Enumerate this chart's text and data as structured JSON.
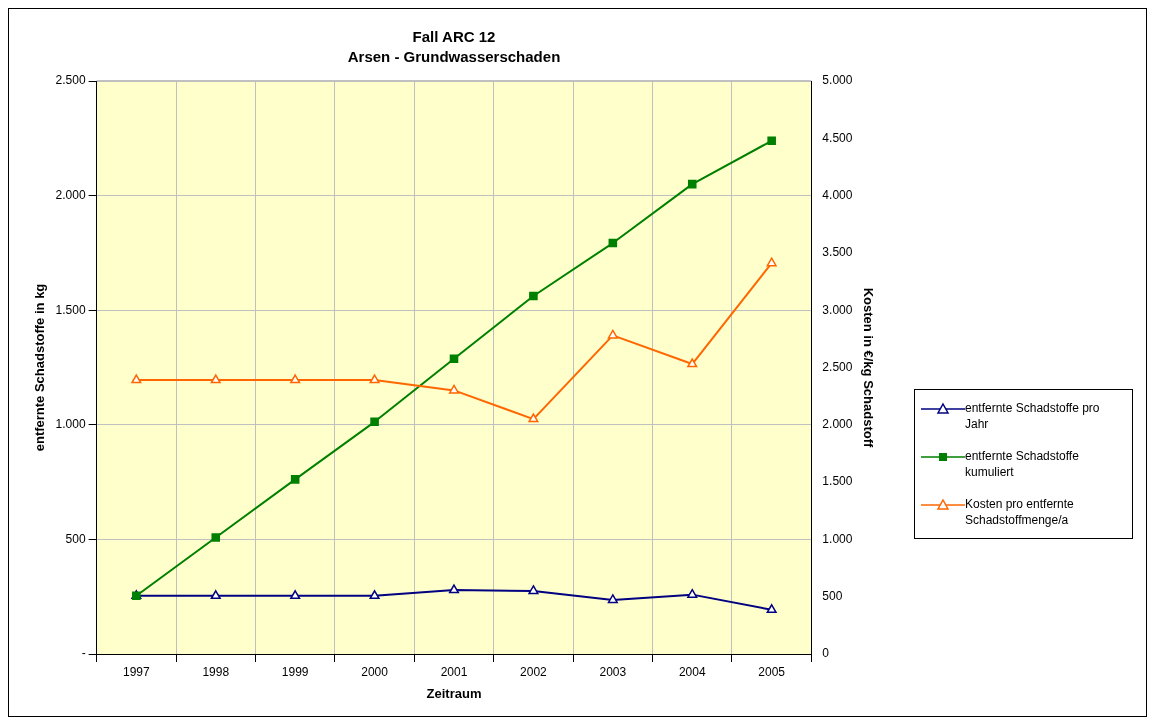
{
  "chart_data": {
    "type": "line",
    "title": "Fall ARC 12",
    "subtitle": "Arsen - Grundwasserschaden",
    "xlabel": "Zeitraum",
    "ylabel": "entfernte Schadstoffe in kg",
    "y2label": "Kosten in €/kg Schadstoff",
    "categories": [
      "1997",
      "1998",
      "1999",
      "2000",
      "2001",
      "2002",
      "2003",
      "2004",
      "2005"
    ],
    "series": [
      {
        "name": "entfernte Schadstoffe pro Jahr",
        "color": "#000080",
        "marker": "triangle",
        "values": [
          254,
          254,
          254,
          254,
          279,
          275,
          236,
          259,
          193
        ]
      },
      {
        "name": "entfernte Schadstoffe kumuliert",
        "color": "#008000",
        "marker": "square",
        "values": [
          254,
          508,
          762,
          1013,
          1288,
          1562,
          1793,
          2050,
          2239
        ]
      },
      {
        "name": "Kosten pro entfernte Schadstoffmenge/a",
        "color": "#ff6600",
        "marker": "triangle",
        "axis": "y2",
        "values": [
          2390,
          2390,
          2390,
          2390,
          2300,
          2050,
          2780,
          2530,
          3410
        ]
      }
    ],
    "ylim": [
      0,
      2500
    ],
    "yticks": [
      {
        "value": 0,
        "label": "-"
      },
      {
        "value": 500,
        "label": "500"
      },
      {
        "value": 1000,
        "label": "1.000"
      },
      {
        "value": 1500,
        "label": "1.500"
      },
      {
        "value": 2000,
        "label": "2.000"
      },
      {
        "value": 2500,
        "label": "2.500"
      }
    ],
    "y2lim": [
      0,
      5000
    ],
    "y2ticks": [
      0,
      {
        "value": 500,
        "label": "500"
      },
      {
        "value": 1000,
        "label": "1.000"
      },
      {
        "value": 1500,
        "label": "1.500"
      },
      {
        "value": 2000,
        "label": "2.000"
      },
      {
        "value": 2500,
        "label": "2.500"
      },
      {
        "value": 3000,
        "label": "3.000"
      },
      {
        "value": 3500,
        "label": "3.500"
      },
      {
        "value": 4000,
        "label": "4.000"
      },
      {
        "value": 4500,
        "label": "4.500"
      },
      {
        "value": 5000,
        "label": "5.000"
      }
    ],
    "grid": true,
    "legend": "right",
    "line_style": "solid"
  }
}
